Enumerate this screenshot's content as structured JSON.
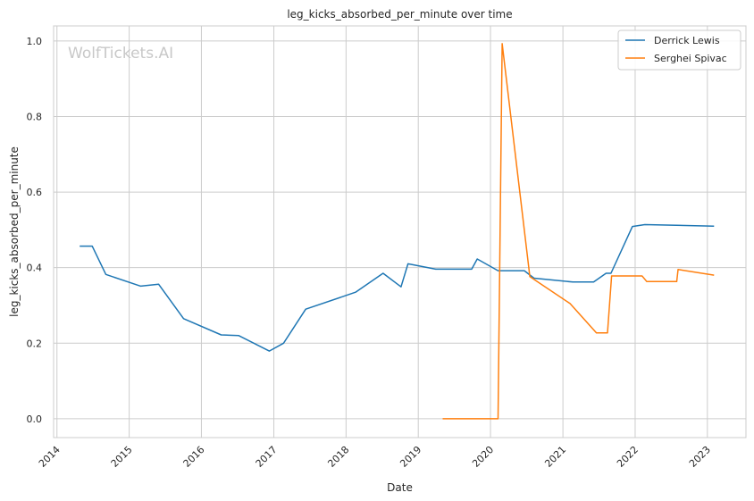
{
  "chart_data": {
    "type": "line",
    "title": "leg_kicks_absorbed_per_minute over time",
    "xlabel": "Date",
    "ylabel": "leg_kicks_absorbed_per_minute",
    "watermark": "WolfTickets.AI",
    "xlim": [
      "2013-12-15",
      "2023-07-15"
    ],
    "ylim": [
      -0.05,
      1.04
    ],
    "x_ticks": [
      "2014",
      "2015",
      "2016",
      "2017",
      "2018",
      "2019",
      "2020",
      "2021",
      "2022",
      "2023"
    ],
    "y_ticks": [
      "0.0",
      "0.2",
      "0.4",
      "0.6",
      "0.8",
      "1.0"
    ],
    "grid": true,
    "legend_position": "top-right",
    "series": [
      {
        "name": "Derrick Lewis",
        "color": "#1f77b4",
        "points": [
          [
            "2014-04-26",
            0.457
          ],
          [
            "2014-06-28",
            0.457
          ],
          [
            "2014-09-05",
            0.382
          ],
          [
            "2015-02-28",
            0.351
          ],
          [
            "2015-05-30",
            0.356
          ],
          [
            "2015-10-03",
            0.265
          ],
          [
            "2016-04-10",
            0.222
          ],
          [
            "2016-07-08",
            0.22
          ],
          [
            "2016-12-09",
            0.179
          ],
          [
            "2017-02-19",
            0.2
          ],
          [
            "2017-06-11",
            0.29
          ],
          [
            "2018-02-18",
            0.335
          ],
          [
            "2018-07-07",
            0.385
          ],
          [
            "2018-10-06",
            0.349
          ],
          [
            "2018-11-10",
            0.41
          ],
          [
            "2019-03-30",
            0.396
          ],
          [
            "2019-09-28",
            0.396
          ],
          [
            "2019-10-26",
            0.423
          ],
          [
            "2020-02-08",
            0.392
          ],
          [
            "2020-06-20",
            0.392
          ],
          [
            "2020-08-08",
            0.372
          ],
          [
            "2021-02-20",
            0.362
          ],
          [
            "2021-06-05",
            0.362
          ],
          [
            "2021-08-07",
            0.385
          ],
          [
            "2021-09-01",
            0.385
          ],
          [
            "2021-12-18",
            0.509
          ],
          [
            "2022-02-19",
            0.514
          ],
          [
            "2023-02-04",
            0.51
          ]
        ]
      },
      {
        "name": "Serghei Spivac",
        "color": "#ff7f0e",
        "points": [
          [
            "2019-05-04",
            0.0
          ],
          [
            "2020-02-08",
            0.0
          ],
          [
            "2020-02-29",
            0.993
          ],
          [
            "2020-07-18",
            0.376
          ],
          [
            "2021-02-06",
            0.305
          ],
          [
            "2021-06-19",
            0.227
          ],
          [
            "2021-08-14",
            0.227
          ],
          [
            "2021-09-04",
            0.378
          ],
          [
            "2022-02-05",
            0.378
          ],
          [
            "2022-03-01",
            0.363
          ],
          [
            "2022-07-30",
            0.363
          ],
          [
            "2022-08-06",
            0.395
          ],
          [
            "2023-02-04",
            0.38
          ]
        ]
      }
    ]
  }
}
